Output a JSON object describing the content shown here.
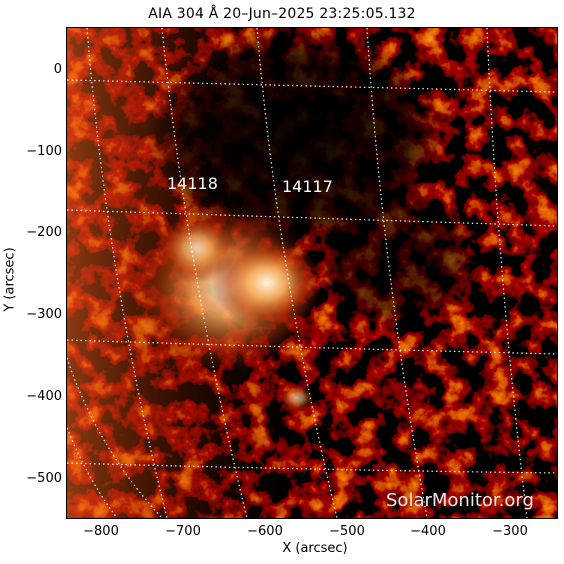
{
  "title": "AIA 304 Å 20–Jun–2025 23:25:05.132",
  "axes": {
    "xlabel": "X (arcsec)",
    "ylabel": "Y (arcsec)",
    "xticks": [
      "−800",
      "−700",
      "−600",
      "−500",
      "−400",
      "−300"
    ],
    "yticks": [
      "0",
      "−100",
      "−200",
      "−300",
      "−400",
      "−500"
    ]
  },
  "regions": [
    {
      "number": "14118"
    },
    {
      "number": "14117"
    }
  ],
  "watermark": "SolarMonitor.org",
  "colors": {
    "background": "#000000",
    "emission_low": "#5a0a00",
    "emission_mid": "#c84a10",
    "emission_high": "#fff2d0",
    "grid": "#ffffff"
  }
}
